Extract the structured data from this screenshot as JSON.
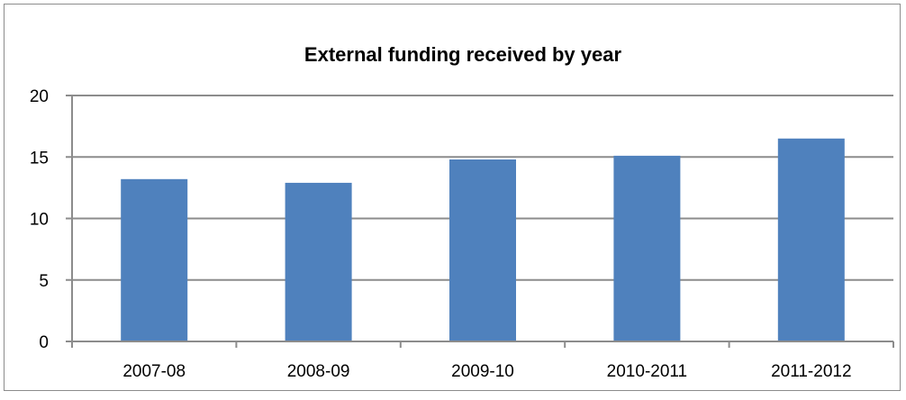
{
  "chart_data": {
    "type": "bar",
    "title": "External funding received by year",
    "xlabel": "",
    "ylabel": "",
    "categories": [
      "2007-08",
      "2008-09",
      "2009-10",
      "2010-2011",
      "2011-2012"
    ],
    "series": [
      {
        "values": [
          13.2,
          12.9,
          14.8,
          15.1,
          16.5
        ]
      }
    ],
    "ylim": [
      0,
      20
    ],
    "yticks": [
      0,
      5,
      10,
      15,
      20
    ],
    "grid": true,
    "legend": "none",
    "colors": {
      "bar": "#4f81bd",
      "grid": "#8c8c8c",
      "axis": "#8c8c8c"
    }
  }
}
